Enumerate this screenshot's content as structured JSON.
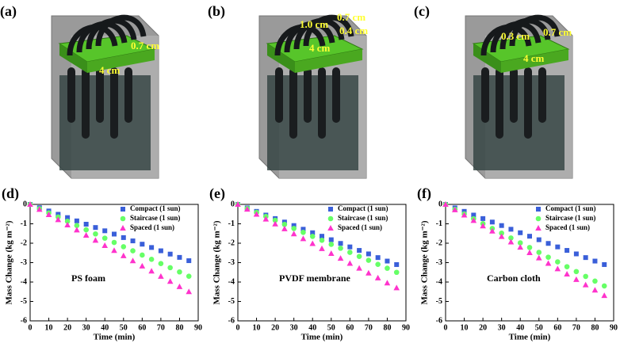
{
  "illustrations": [
    {
      "label": "(a)",
      "annotations": [
        "0.7 cm",
        "4 cm"
      ]
    },
    {
      "label": "(b)",
      "annotations": [
        "1.0 cm",
        "0.7 cm",
        "0.4 cm",
        "4 cm"
      ]
    },
    {
      "label": "(c)",
      "annotations": [
        "0.3 cm",
        "0.7 cm",
        "4 cm"
      ]
    }
  ],
  "chart_data": [
    {
      "type": "scatter",
      "label": "(d)",
      "annotation": "PS foam",
      "x_label": "Time (min)",
      "y_label": "Mass Change (kg m⁻²)",
      "xlim": [
        0,
        90
      ],
      "xticks": [
        0,
        10,
        20,
        30,
        40,
        50,
        60,
        70,
        80,
        90
      ],
      "ylim": [
        -6,
        0
      ],
      "yticks": [
        -6,
        -5,
        -4,
        -3,
        -2,
        -1,
        0
      ],
      "x": [
        0,
        5,
        10,
        15,
        20,
        25,
        30,
        35,
        40,
        45,
        50,
        55,
        60,
        65,
        70,
        75,
        80,
        85
      ],
      "series": [
        {
          "name": "Compact (1 sun)",
          "color": "#3a5fd9",
          "marker": "square",
          "values": [
            0,
            -0.17,
            -0.34,
            -0.51,
            -0.68,
            -0.85,
            -1.02,
            -1.19,
            -1.36,
            -1.53,
            -1.71,
            -1.88,
            -2.05,
            -2.22,
            -2.39,
            -2.56,
            -2.73,
            -2.9
          ]
        },
        {
          "name": "Staircase (1 sun)",
          "color": "#66ff66",
          "marker": "circle",
          "values": [
            0,
            -0.22,
            -0.44,
            -0.65,
            -0.87,
            -1.09,
            -1.31,
            -1.52,
            -1.74,
            -1.96,
            -2.18,
            -2.39,
            -2.61,
            -2.83,
            -3.05,
            -3.26,
            -3.48,
            -3.7
          ]
        },
        {
          "name": "Spaced (1 sun)",
          "color": "#ff33cc",
          "marker": "triangle",
          "values": [
            0,
            -0.26,
            -0.53,
            -0.79,
            -1.06,
            -1.32,
            -1.59,
            -1.85,
            -2.12,
            -2.38,
            -2.65,
            -2.91,
            -3.18,
            -3.44,
            -3.71,
            -3.97,
            -4.24,
            -4.5
          ]
        }
      ]
    },
    {
      "type": "scatter",
      "label": "(e)",
      "annotation": "PVDF membrane",
      "x_label": "Time (min)",
      "y_label": "Mass Change (kg m⁻²)",
      "xlim": [
        0,
        90
      ],
      "xticks": [
        0,
        10,
        20,
        30,
        40,
        50,
        60,
        70,
        80,
        90
      ],
      "ylim": [
        -6,
        0
      ],
      "yticks": [
        -6,
        -5,
        -4,
        -3,
        -2,
        -1,
        0
      ],
      "x": [
        0,
        5,
        10,
        15,
        20,
        25,
        30,
        35,
        40,
        45,
        50,
        55,
        60,
        65,
        70,
        75,
        80,
        85
      ],
      "series": [
        {
          "name": "Compact (1 sun)",
          "color": "#3a5fd9",
          "marker": "square",
          "values": [
            0,
            -0.18,
            -0.36,
            -0.55,
            -0.73,
            -0.91,
            -1.09,
            -1.28,
            -1.46,
            -1.64,
            -1.82,
            -2.01,
            -2.19,
            -2.37,
            -2.55,
            -2.74,
            -2.92,
            -3.1
          ]
        },
        {
          "name": "Staircase (1 sun)",
          "color": "#66ff66",
          "marker": "circle",
          "values": [
            0,
            -0.21,
            -0.41,
            -0.62,
            -0.82,
            -1.03,
            -1.24,
            -1.44,
            -1.65,
            -1.85,
            -2.06,
            -2.26,
            -2.47,
            -2.68,
            -2.88,
            -3.09,
            -3.29,
            -3.5
          ]
        },
        {
          "name": "Spaced (1 sun)",
          "color": "#ff33cc",
          "marker": "triangle",
          "values": [
            0,
            -0.25,
            -0.51,
            -0.76,
            -1.01,
            -1.26,
            -1.52,
            -1.77,
            -2.02,
            -2.28,
            -2.53,
            -2.78,
            -3.04,
            -3.29,
            -3.54,
            -3.79,
            -4.05,
            -4.3
          ]
        }
      ]
    },
    {
      "type": "scatter",
      "label": "(f)",
      "annotation": "Carbon cloth",
      "x_label": "Time (min)",
      "y_label": "Mass Change (kg m⁻²)",
      "xlim": [
        0,
        90
      ],
      "xticks": [
        0,
        10,
        20,
        30,
        40,
        50,
        60,
        70,
        80,
        90
      ],
      "ylim": [
        -6,
        0
      ],
      "yticks": [
        -6,
        -5,
        -4,
        -3,
        -2,
        -1,
        0
      ],
      "x": [
        0,
        5,
        10,
        15,
        20,
        25,
        30,
        35,
        40,
        45,
        50,
        55,
        60,
        65,
        70,
        75,
        80,
        85
      ],
      "series": [
        {
          "name": "Compact (1 sun)",
          "color": "#3a5fd9",
          "marker": "square",
          "values": [
            0,
            -0.18,
            -0.36,
            -0.55,
            -0.73,
            -0.91,
            -1.09,
            -1.28,
            -1.46,
            -1.64,
            -1.82,
            -2.01,
            -2.19,
            -2.37,
            -2.55,
            -2.74,
            -2.92,
            -3.1
          ]
        },
        {
          "name": "Staircase (1 sun)",
          "color": "#66ff66",
          "marker": "circle",
          "values": [
            0,
            -0.25,
            -0.49,
            -0.74,
            -0.99,
            -1.24,
            -1.48,
            -1.73,
            -1.98,
            -2.22,
            -2.47,
            -2.72,
            -2.96,
            -3.21,
            -3.46,
            -3.71,
            -3.95,
            -4.2
          ]
        },
        {
          "name": "Spaced (1 sun)",
          "color": "#ff33cc",
          "marker": "triangle",
          "values": [
            0,
            -0.28,
            -0.55,
            -0.83,
            -1.11,
            -1.38,
            -1.66,
            -1.94,
            -2.21,
            -2.49,
            -2.76,
            -3.04,
            -3.32,
            -3.59,
            -3.87,
            -4.15,
            -4.42,
            -4.7
          ]
        }
      ]
    }
  ]
}
